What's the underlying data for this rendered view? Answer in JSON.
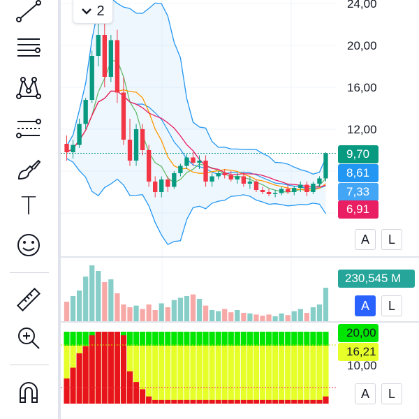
{
  "toolbar": {
    "tools": [
      {
        "name": "trend-line-icon"
      },
      {
        "name": "fib-retracement-icon"
      },
      {
        "name": "pattern-icon"
      },
      {
        "name": "forecast-icon"
      },
      {
        "name": "brush-icon"
      },
      {
        "name": "text-tool-icon",
        "glyph": "T"
      },
      {
        "name": "emoji-icon"
      },
      {
        "name": "ruler-icon"
      },
      {
        "name": "zoom-in-icon"
      },
      {
        "name": "magnet-icon"
      }
    ]
  },
  "legend": {
    "collapse_icon": "chevron-down-icon",
    "count": "2"
  },
  "price_axis": {
    "labels": [
      "24,00",
      "20,00",
      "16,00",
      "12,00"
    ]
  },
  "price_tags": [
    {
      "id": "last",
      "label": "9,70",
      "color": "#089981"
    },
    {
      "id": "bb-upper",
      "label": "8,61",
      "color": "#2196f3"
    },
    {
      "id": "bb-mid",
      "label": "7,33",
      "color": "#42a5f5"
    },
    {
      "id": "ma",
      "label": "6,91",
      "color": "#e91e63"
    }
  ],
  "volume": {
    "tag": "230,545 M",
    "tag_color": "#26a69a",
    "hidden_label": "230 M"
  },
  "osc": {
    "tags": [
      {
        "label": "20,00",
        "color": "#00e600"
      },
      {
        "label": "16,21",
        "color": "#e6ff29"
      }
    ],
    "axis_label": "10,00"
  },
  "pane_buttons": {
    "main": {
      "a": "A",
      "l": "L",
      "a_active": false
    },
    "volume": {
      "a": "A",
      "l": "L",
      "a_active": true
    },
    "osc": {
      "a": "A",
      "l": "L",
      "a_active": false
    }
  },
  "chart_data": {
    "type": "candlestick",
    "ylim": [
      4,
      24
    ],
    "candles": [
      {
        "o": 10.6,
        "h": 11.4,
        "l": 9.0,
        "c": 9.8
      },
      {
        "o": 9.8,
        "h": 11.0,
        "l": 9.2,
        "c": 10.5
      },
      {
        "o": 10.5,
        "h": 13.0,
        "l": 10.2,
        "c": 12.5
      },
      {
        "o": 12.5,
        "h": 15.0,
        "l": 12.0,
        "c": 14.8
      },
      {
        "o": 14.8,
        "h": 19.5,
        "l": 14.5,
        "c": 19.0
      },
      {
        "o": 19.0,
        "h": 22.5,
        "l": 18.0,
        "c": 21.0
      },
      {
        "o": 21.0,
        "h": 23.0,
        "l": 16.0,
        "c": 17.0
      },
      {
        "o": 17.0,
        "h": 21.0,
        "l": 16.5,
        "c": 20.5
      },
      {
        "o": 20.5,
        "h": 21.5,
        "l": 14.5,
        "c": 15.5
      },
      {
        "o": 15.5,
        "h": 17.0,
        "l": 10.5,
        "c": 11.0
      },
      {
        "o": 11.0,
        "h": 13.0,
        "l": 8.5,
        "c": 9.0
      },
      {
        "o": 9.0,
        "h": 12.5,
        "l": 8.5,
        "c": 12.0
      },
      {
        "o": 12.0,
        "h": 12.5,
        "l": 9.5,
        "c": 10.0
      },
      {
        "o": 10.0,
        "h": 10.5,
        "l": 6.5,
        "c": 7.0
      },
      {
        "o": 7.0,
        "h": 7.5,
        "l": 5.5,
        "c": 6.0
      },
      {
        "o": 6.0,
        "h": 7.5,
        "l": 5.5,
        "c": 7.2
      },
      {
        "o": 7.2,
        "h": 7.5,
        "l": 6.0,
        "c": 6.5
      },
      {
        "o": 6.5,
        "h": 8.0,
        "l": 6.3,
        "c": 7.8
      },
      {
        "o": 7.8,
        "h": 8.7,
        "l": 7.5,
        "c": 8.5
      },
      {
        "o": 8.5,
        "h": 9.6,
        "l": 8.2,
        "c": 9.3
      },
      {
        "o": 9.3,
        "h": 9.8,
        "l": 8.5,
        "c": 8.8
      },
      {
        "o": 8.8,
        "h": 9.5,
        "l": 8.2,
        "c": 9.0
      },
      {
        "o": 9.0,
        "h": 9.5,
        "l": 6.5,
        "c": 7.0
      },
      {
        "o": 7.0,
        "h": 7.8,
        "l": 6.5,
        "c": 7.5
      },
      {
        "o": 7.5,
        "h": 8.0,
        "l": 7.2,
        "c": 7.8
      },
      {
        "o": 7.8,
        "h": 8.2,
        "l": 7.3,
        "c": 7.6
      },
      {
        "o": 7.6,
        "h": 8.0,
        "l": 7.0,
        "c": 7.2
      },
      {
        "o": 7.2,
        "h": 7.8,
        "l": 6.8,
        "c": 7.5
      },
      {
        "o": 7.5,
        "h": 7.9,
        "l": 6.5,
        "c": 6.8
      },
      {
        "o": 6.8,
        "h": 7.5,
        "l": 6.3,
        "c": 7.0
      },
      {
        "o": 7.0,
        "h": 7.2,
        "l": 6.0,
        "c": 6.2
      },
      {
        "o": 6.2,
        "h": 6.5,
        "l": 5.8,
        "c": 6.0
      },
      {
        "o": 6.0,
        "h": 6.3,
        "l": 5.6,
        "c": 5.8
      },
      {
        "o": 5.8,
        "h": 6.2,
        "l": 5.5,
        "c": 5.9
      },
      {
        "o": 5.9,
        "h": 6.5,
        "l": 5.7,
        "c": 6.3
      },
      {
        "o": 6.3,
        "h": 6.8,
        "l": 5.8,
        "c": 6.0
      },
      {
        "o": 6.0,
        "h": 6.6,
        "l": 5.7,
        "c": 6.4
      },
      {
        "o": 6.4,
        "h": 7.0,
        "l": 6.0,
        "c": 6.7
      },
      {
        "o": 6.7,
        "h": 7.0,
        "l": 5.6,
        "c": 6.0
      },
      {
        "o": 6.0,
        "h": 7.0,
        "l": 5.8,
        "c": 6.8
      },
      {
        "o": 6.8,
        "h": 7.5,
        "l": 6.5,
        "c": 7.3
      },
      {
        "o": 7.3,
        "h": 9.8,
        "l": 7.0,
        "c": 9.7
      }
    ],
    "volume": [
      {
        "v": 35,
        "up": false
      },
      {
        "v": 45,
        "up": true
      },
      {
        "v": 55,
        "up": true
      },
      {
        "v": 80,
        "up": true
      },
      {
        "v": 100,
        "up": true
      },
      {
        "v": 90,
        "up": true
      },
      {
        "v": 70,
        "up": false
      },
      {
        "v": 75,
        "up": true
      },
      {
        "v": 50,
        "up": false
      },
      {
        "v": 30,
        "up": false
      },
      {
        "v": 25,
        "up": false
      },
      {
        "v": 28,
        "up": true
      },
      {
        "v": 22,
        "up": false
      },
      {
        "v": 30,
        "up": false
      },
      {
        "v": 20,
        "up": false
      },
      {
        "v": 32,
        "up": true
      },
      {
        "v": 25,
        "up": false
      },
      {
        "v": 38,
        "up": true
      },
      {
        "v": 42,
        "up": true
      },
      {
        "v": 45,
        "up": true
      },
      {
        "v": 48,
        "up": false
      },
      {
        "v": 40,
        "up": true
      },
      {
        "v": 28,
        "up": false
      },
      {
        "v": 20,
        "up": true
      },
      {
        "v": 18,
        "up": true
      },
      {
        "v": 22,
        "up": false
      },
      {
        "v": 16,
        "up": false
      },
      {
        "v": 20,
        "up": true
      },
      {
        "v": 15,
        "up": false
      },
      {
        "v": 14,
        "up": true
      },
      {
        "v": 12,
        "up": false
      },
      {
        "v": 10,
        "up": false
      },
      {
        "v": 12,
        "up": false
      },
      {
        "v": 9,
        "up": true
      },
      {
        "v": 14,
        "up": true
      },
      {
        "v": 11,
        "up": false
      },
      {
        "v": 18,
        "up": true
      },
      {
        "v": 22,
        "up": true
      },
      {
        "v": 15,
        "up": false
      },
      {
        "v": 25,
        "up": true
      },
      {
        "v": 30,
        "up": true
      },
      {
        "v": 60,
        "up": true
      }
    ],
    "oscillator_red_fraction": [
      0.35,
      0.5,
      0.7,
      0.8,
      0.95,
      1,
      1,
      1,
      1,
      0.95,
      0.45,
      0.3,
      0.2,
      0.1,
      0.05,
      0.05,
      0.05,
      0.05,
      0.05,
      0.05,
      0.05,
      0.05,
      0.05,
      0.05,
      0.05,
      0.05,
      0.05,
      0.05,
      0.05,
      0.05,
      0.05,
      0.05,
      0.05,
      0.05,
      0.05,
      0.05,
      0.05,
      0.05,
      0.05,
      0.05,
      0.05,
      0.1
    ]
  }
}
